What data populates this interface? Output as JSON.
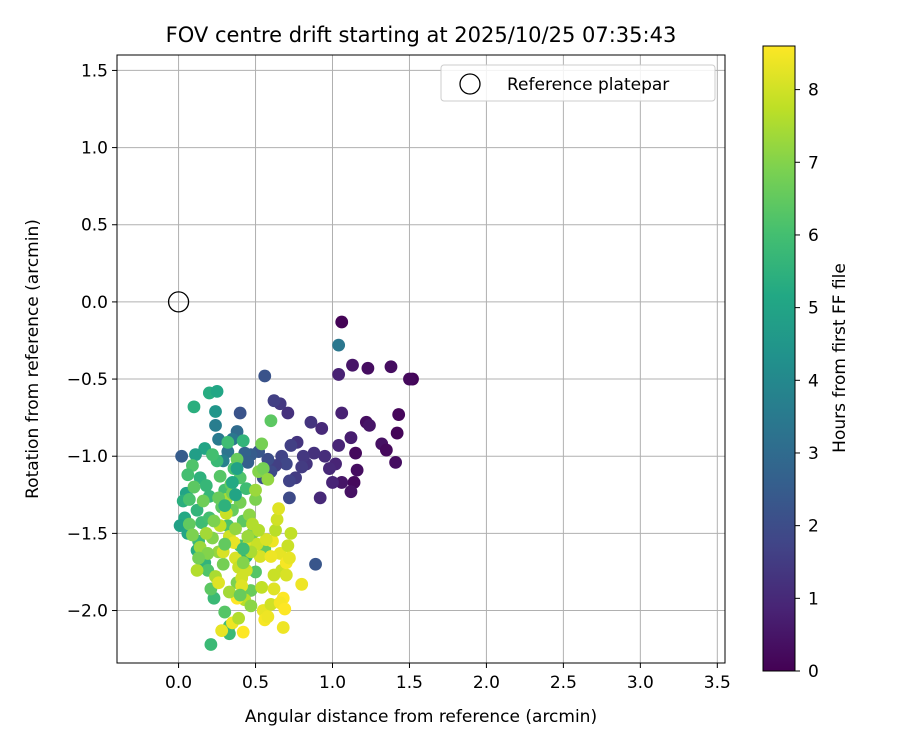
{
  "chart_data": {
    "type": "scatter",
    "title": "FOV centre drift starting at 2025/10/25 07:35:43",
    "xlabel": "Angular distance from reference (arcmin)",
    "ylabel": "Rotation from reference (arcmin)",
    "xlim": [
      -0.4,
      3.55
    ],
    "ylim": [
      -2.34,
      1.6
    ],
    "xticks": [
      0.0,
      0.5,
      1.0,
      1.5,
      2.0,
      2.5,
      3.0,
      3.5
    ],
    "yticks": [
      1.5,
      1.0,
      0.5,
      0.0,
      -0.5,
      -1.0,
      -1.5,
      -2.0
    ],
    "xtick_labels": [
      "0.0",
      "0.5",
      "1.0",
      "1.5",
      "2.0",
      "2.5",
      "3.0",
      "3.5"
    ],
    "ytick_labels": [
      "1.5",
      "1.0",
      "0.5",
      "0.0",
      "−0.5",
      "−1.0",
      "−1.5",
      "−2.0"
    ],
    "grid": true,
    "legend": {
      "placement": "top-right",
      "label": "Reference platepar"
    },
    "reference_point": {
      "x": 0.0,
      "y": 0.0
    },
    "colorbar": {
      "label": "Hours from first FF file",
      "range": [
        0,
        8.6
      ],
      "ticks": [
        0,
        1,
        2,
        3,
        4,
        5,
        6,
        7,
        8
      ],
      "tick_labels": [
        "0",
        "1",
        "2",
        "3",
        "4",
        "5",
        "6",
        "7",
        "8"
      ],
      "colormap": "viridis"
    },
    "points": [
      [
        1.06,
        -0.13,
        0.05
      ],
      [
        1.52,
        -0.5,
        0.1
      ],
      [
        1.5,
        -0.5,
        0.2
      ],
      [
        1.43,
        -0.73,
        0.15
      ],
      [
        1.42,
        -0.85,
        0.1
      ],
      [
        1.41,
        -1.04,
        0.3
      ],
      [
        1.38,
        -0.42,
        0.3
      ],
      [
        1.32,
        -0.92,
        0.4
      ],
      [
        1.35,
        -0.96,
        0.2
      ],
      [
        1.23,
        -0.43,
        0.3
      ],
      [
        1.13,
        -0.41,
        0.5
      ],
      [
        1.22,
        -0.78,
        0.3
      ],
      [
        1.24,
        -0.8,
        0.5
      ],
      [
        1.15,
        -0.98,
        0.2
      ],
      [
        1.16,
        -1.09,
        0.3
      ],
      [
        1.14,
        -1.17,
        0.2
      ],
      [
        1.12,
        -1.23,
        0.4
      ],
      [
        1.12,
        -0.88,
        0.7
      ],
      [
        1.06,
        -1.17,
        0.5
      ],
      [
        1.06,
        -0.72,
        0.8
      ],
      [
        1.04,
        -0.47,
        0.8
      ],
      [
        1.04,
        -0.93,
        0.9
      ],
      [
        1.02,
        -1.05,
        0.9
      ],
      [
        1.0,
        -1.17,
        0.9
      ],
      [
        0.98,
        -1.08,
        1.0
      ],
      [
        0.95,
        -1.0,
        1.1
      ],
      [
        0.93,
        -0.82,
        1.0
      ],
      [
        0.92,
        -1.27,
        1.0
      ],
      [
        0.88,
        -0.98,
        1.2
      ],
      [
        0.86,
        -0.78,
        1.3
      ],
      [
        0.83,
        -1.05,
        1.3
      ],
      [
        0.81,
        -1.0,
        1.4
      ],
      [
        0.8,
        -1.07,
        1.5
      ],
      [
        0.77,
        -0.91,
        1.3
      ],
      [
        0.76,
        -1.14,
        1.5
      ],
      [
        0.73,
        -0.93,
        1.6
      ],
      [
        0.71,
        -0.72,
        1.2
      ],
      [
        0.72,
        -1.16,
        1.7
      ],
      [
        0.72,
        -1.27,
        1.9
      ],
      [
        0.66,
        -0.66,
        1.4
      ],
      [
        0.62,
        -0.64,
        1.6
      ],
      [
        0.67,
        -1.0,
        1.7
      ],
      [
        0.7,
        -1.05,
        1.8
      ],
      [
        0.63,
        -1.06,
        1.6
      ],
      [
        0.6,
        -1.1,
        1.9
      ],
      [
        0.56,
        -0.48,
        2.2
      ],
      [
        0.58,
        -1.02,
        2.0
      ],
      [
        0.55,
        -1.14,
        2.1
      ],
      [
        0.52,
        -0.97,
        2.3
      ],
      [
        0.47,
        -0.99,
        2.5
      ],
      [
        0.43,
        -0.98,
        2.7
      ],
      [
        0.45,
        -1.04,
        2.6
      ],
      [
        0.4,
        -0.72,
        2.2
      ],
      [
        0.38,
        -0.84,
        3.0
      ],
      [
        0.35,
        -0.89,
        3.4
      ],
      [
        0.32,
        -0.97,
        3.3
      ],
      [
        0.29,
        -1.03,
        3.7
      ],
      [
        0.26,
        -0.89,
        3.5
      ],
      [
        0.24,
        -0.8,
        3.6
      ],
      [
        0.24,
        -0.71,
        4.5
      ],
      [
        0.2,
        -0.59,
        5.3
      ],
      [
        0.25,
        -0.58,
        5.1
      ],
      [
        0.1,
        -0.68,
        5.4
      ],
      [
        0.17,
        -0.95,
        5.0
      ],
      [
        0.11,
        -0.99,
        4.8
      ],
      [
        0.02,
        -1.0,
        2.5
      ],
      [
        1.04,
        -0.28,
        3.4
      ],
      [
        0.89,
        -1.7,
        2.3
      ],
      [
        0.09,
        -1.06,
        6.2
      ],
      [
        0.06,
        -1.12,
        6.0
      ],
      [
        0.05,
        -1.24,
        5.0
      ],
      [
        0.03,
        -1.29,
        5.4
      ],
      [
        0.04,
        -1.4,
        5.2
      ],
      [
        0.01,
        -1.45,
        4.9
      ],
      [
        0.06,
        -1.5,
        5.0
      ],
      [
        0.12,
        -1.35,
        5.6
      ],
      [
        0.14,
        -1.14,
        5.5
      ],
      [
        0.18,
        -1.19,
        5.7
      ],
      [
        0.2,
        -1.26,
        5.7
      ],
      [
        0.15,
        -1.43,
        5.9
      ],
      [
        0.13,
        -1.55,
        5.8
      ],
      [
        0.12,
        -1.61,
        5.3
      ],
      [
        0.17,
        -1.69,
        5.6
      ],
      [
        0.19,
        -1.74,
        6.2
      ],
      [
        0.23,
        -1.92,
        5.8
      ],
      [
        0.21,
        -1.86,
        6.4
      ],
      [
        0.21,
        -2.22,
        5.8
      ],
      [
        0.2,
        -1.4,
        6.0
      ],
      [
        0.25,
        -1.03,
        5.8
      ],
      [
        0.27,
        -1.13,
        6.3
      ],
      [
        0.3,
        -1.22,
        6.0
      ],
      [
        0.28,
        -1.33,
        6.4
      ],
      [
        0.32,
        -1.45,
        6.1
      ],
      [
        0.34,
        -1.18,
        6.5
      ],
      [
        0.36,
        -1.08,
        6.1
      ],
      [
        0.38,
        -1.02,
        6.6
      ],
      [
        0.4,
        -1.14,
        6.2
      ],
      [
        0.4,
        -1.3,
        6.8
      ],
      [
        0.35,
        -1.35,
        6.6
      ],
      [
        0.42,
        -1.42,
        6.4
      ],
      [
        0.44,
        -1.21,
        5.9
      ],
      [
        0.46,
        -1.38,
        7.1
      ],
      [
        0.5,
        -1.28,
        6.9
      ],
      [
        0.52,
        -1.1,
        7.0
      ],
      [
        0.55,
        -1.08,
        6.8
      ],
      [
        0.58,
        -1.15,
        7.2
      ],
      [
        0.6,
        -0.77,
        6.4
      ],
      [
        0.54,
        -0.92,
        6.8
      ],
      [
        0.56,
        -1.6,
        6.5
      ],
      [
        0.48,
        -1.5,
        6.7
      ],
      [
        0.5,
        -1.75,
        6.3
      ],
      [
        0.47,
        -1.87,
        6.6
      ],
      [
        0.44,
        -1.65,
        5.6
      ],
      [
        0.4,
        -1.58,
        6.1
      ],
      [
        0.38,
        -1.82,
        6.9
      ],
      [
        0.33,
        -2.1,
        6.0
      ],
      [
        0.33,
        -2.15,
        5.8
      ],
      [
        0.3,
        -2.01,
        6.3
      ],
      [
        0.29,
        -1.7,
        6.8
      ],
      [
        0.26,
        -1.62,
        7.2
      ],
      [
        0.24,
        -1.78,
        7.5
      ],
      [
        0.22,
        -1.53,
        7.0
      ],
      [
        0.18,
        -1.5,
        7.4
      ],
      [
        0.14,
        -1.59,
        7.3
      ],
      [
        0.12,
        -1.74,
        7.6
      ],
      [
        0.27,
        -1.45,
        7.8
      ],
      [
        0.31,
        -1.37,
        7.9
      ],
      [
        0.33,
        -1.52,
        8.0
      ],
      [
        0.36,
        -1.56,
        8.3
      ],
      [
        0.37,
        -1.66,
        8.1
      ],
      [
        0.39,
        -1.72,
        7.9
      ],
      [
        0.41,
        -1.79,
        8.0
      ],
      [
        0.43,
        -1.93,
        7.7
      ],
      [
        0.45,
        -1.58,
        8.2
      ],
      [
        0.48,
        -1.44,
        7.6
      ],
      [
        0.51,
        -1.57,
        7.9
      ],
      [
        0.53,
        -1.65,
        8.1
      ],
      [
        0.54,
        -1.85,
        7.8
      ],
      [
        0.55,
        -2.0,
        8.3
      ],
      [
        0.56,
        -2.06,
        8.5
      ],
      [
        0.58,
        -2.04,
        8.4
      ],
      [
        0.6,
        -1.96,
        8.0
      ],
      [
        0.62,
        -1.86,
        8.2
      ],
      [
        0.61,
        -1.55,
        8.4
      ],
      [
        0.63,
        -1.48,
        7.7
      ],
      [
        0.64,
        -1.41,
        8.0
      ],
      [
        0.65,
        -1.34,
        8.2
      ],
      [
        0.66,
        -1.63,
        8.3
      ],
      [
        0.67,
        -1.74,
        7.9
      ],
      [
        0.68,
        -1.92,
        8.6
      ],
      [
        0.68,
        -2.11,
        8.4
      ],
      [
        0.7,
        -1.77,
        8.1
      ],
      [
        0.71,
        -1.58,
        7.9
      ],
      [
        0.73,
        -1.5,
        7.8
      ],
      [
        0.7,
        -1.69,
        8.5
      ],
      [
        0.66,
        -1.95,
        8.5
      ],
      [
        0.69,
        -1.99,
        8.6
      ],
      [
        0.8,
        -1.83,
        8.4
      ],
      [
        0.72,
        -1.66,
        8.3
      ],
      [
        0.62,
        -1.77,
        7.9
      ],
      [
        0.6,
        -1.65,
        8.4
      ],
      [
        0.57,
        -1.54,
        8.1
      ],
      [
        0.52,
        -1.48,
        7.6
      ],
      [
        0.47,
        -1.62,
        7.5
      ],
      [
        0.44,
        -1.74,
        8.0
      ],
      [
        0.41,
        -1.84,
        8.2
      ],
      [
        0.38,
        -1.92,
        8.6
      ],
      [
        0.35,
        -2.08,
        8.4
      ],
      [
        0.42,
        -2.14,
        8.6
      ],
      [
        0.28,
        -2.13,
        8.3
      ],
      [
        0.26,
        -1.82,
        8.2
      ],
      [
        0.29,
        -1.62,
        8.1
      ],
      [
        0.31,
        -1.28,
        7.5
      ],
      [
        0.23,
        -1.42,
        6.9
      ],
      [
        0.19,
        -1.63,
        7.0
      ],
      [
        0.35,
        -1.24,
        6.8
      ],
      [
        0.5,
        -1.22,
        7.3
      ],
      [
        0.45,
        -1.52,
        7.3
      ],
      [
        0.37,
        -1.47,
        7.2
      ],
      [
        0.42,
        -1.69,
        7.0
      ],
      [
        0.33,
        -1.88,
        7.4
      ],
      [
        0.39,
        -2.05,
        7.6
      ],
      [
        0.47,
        -1.97,
        7.1
      ],
      [
        0.3,
        -1.57,
        6.5
      ],
      [
        0.26,
        -1.27,
        6.6
      ],
      [
        0.16,
        -1.29,
        6.7
      ],
      [
        0.07,
        -1.44,
        6.5
      ],
      [
        0.09,
        -1.51,
        6.9
      ],
      [
        0.13,
        -1.66,
        6.8
      ],
      [
        0.1,
        -1.2,
        6.4
      ],
      [
        0.07,
        -1.28,
        6.1
      ],
      [
        0.42,
        -0.9,
        5.6
      ],
      [
        0.32,
        -0.91,
        5.9
      ],
      [
        0.38,
        -1.08,
        4.9
      ],
      [
        0.35,
        -1.17,
        5.2
      ],
      [
        0.37,
        -1.25,
        5.0
      ],
      [
        0.3,
        -1.32,
        5.5
      ],
      [
        0.22,
        -0.99,
        6.0
      ],
      [
        0.42,
        -1.6,
        5.9
      ],
      [
        0.4,
        -1.9,
        6.6
      ]
    ]
  }
}
